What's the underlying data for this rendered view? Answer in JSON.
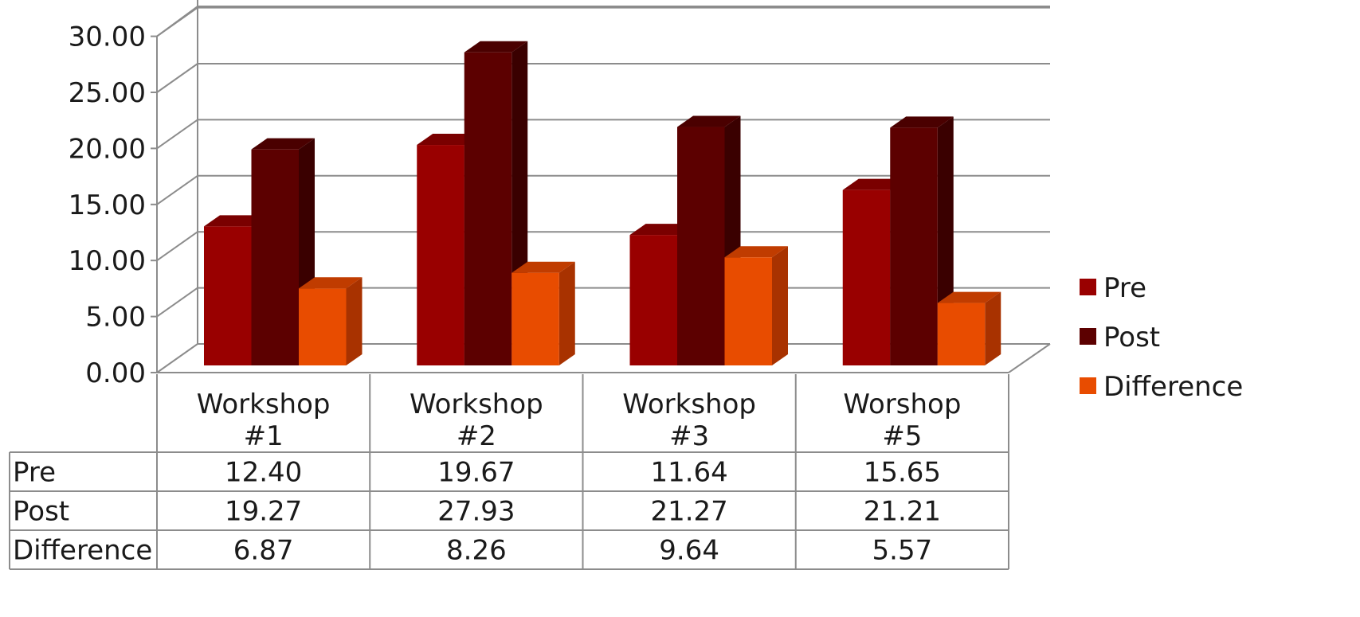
{
  "chart_data": {
    "type": "bar",
    "categories": [
      "Workshop #1",
      "Workshop #2",
      "Workshop #3",
      "Worshop #5"
    ],
    "category_lines": [
      [
        "Workshop",
        "#1"
      ],
      [
        "Workshop",
        "#2"
      ],
      [
        "Workshop",
        "#3"
      ],
      [
        "Worshop",
        "#5"
      ]
    ],
    "series": [
      {
        "name": "Pre",
        "values": [
          12.4,
          19.67,
          11.64,
          15.65
        ],
        "color": "#990000"
      },
      {
        "name": "Post",
        "values": [
          19.27,
          27.93,
          21.27,
          21.21
        ],
        "color": "#5c0000"
      },
      {
        "name": "Difference",
        "values": [
          6.87,
          8.26,
          9.64,
          5.57
        ],
        "color": "#e84c00"
      }
    ],
    "value_labels": {
      "Pre": [
        "12.40",
        "19.67",
        "11.64",
        "15.65"
      ],
      "Post": [
        "19.27",
        "27.93",
        "21.27",
        "21.21"
      ],
      "Difference": [
        "6.87",
        "8.26",
        "9.64",
        "5.57"
      ]
    },
    "yticks": [
      "0.00",
      "5.00",
      "10.00",
      "15.00",
      "20.00",
      "25.00",
      "30.00"
    ],
    "ylim": [
      0,
      30
    ],
    "grid": true,
    "legend_position": "right",
    "data_table": true,
    "three_d": true,
    "colors": {
      "grid": "#8c8c8c",
      "side": {
        "Pre": "#6e0000",
        "Post": "#3a0000",
        "Difference": "#a83200"
      },
      "top": {
        "Pre": "#7a0000",
        "Post": "#4a0000",
        "Difference": "#c03c00"
      }
    }
  }
}
